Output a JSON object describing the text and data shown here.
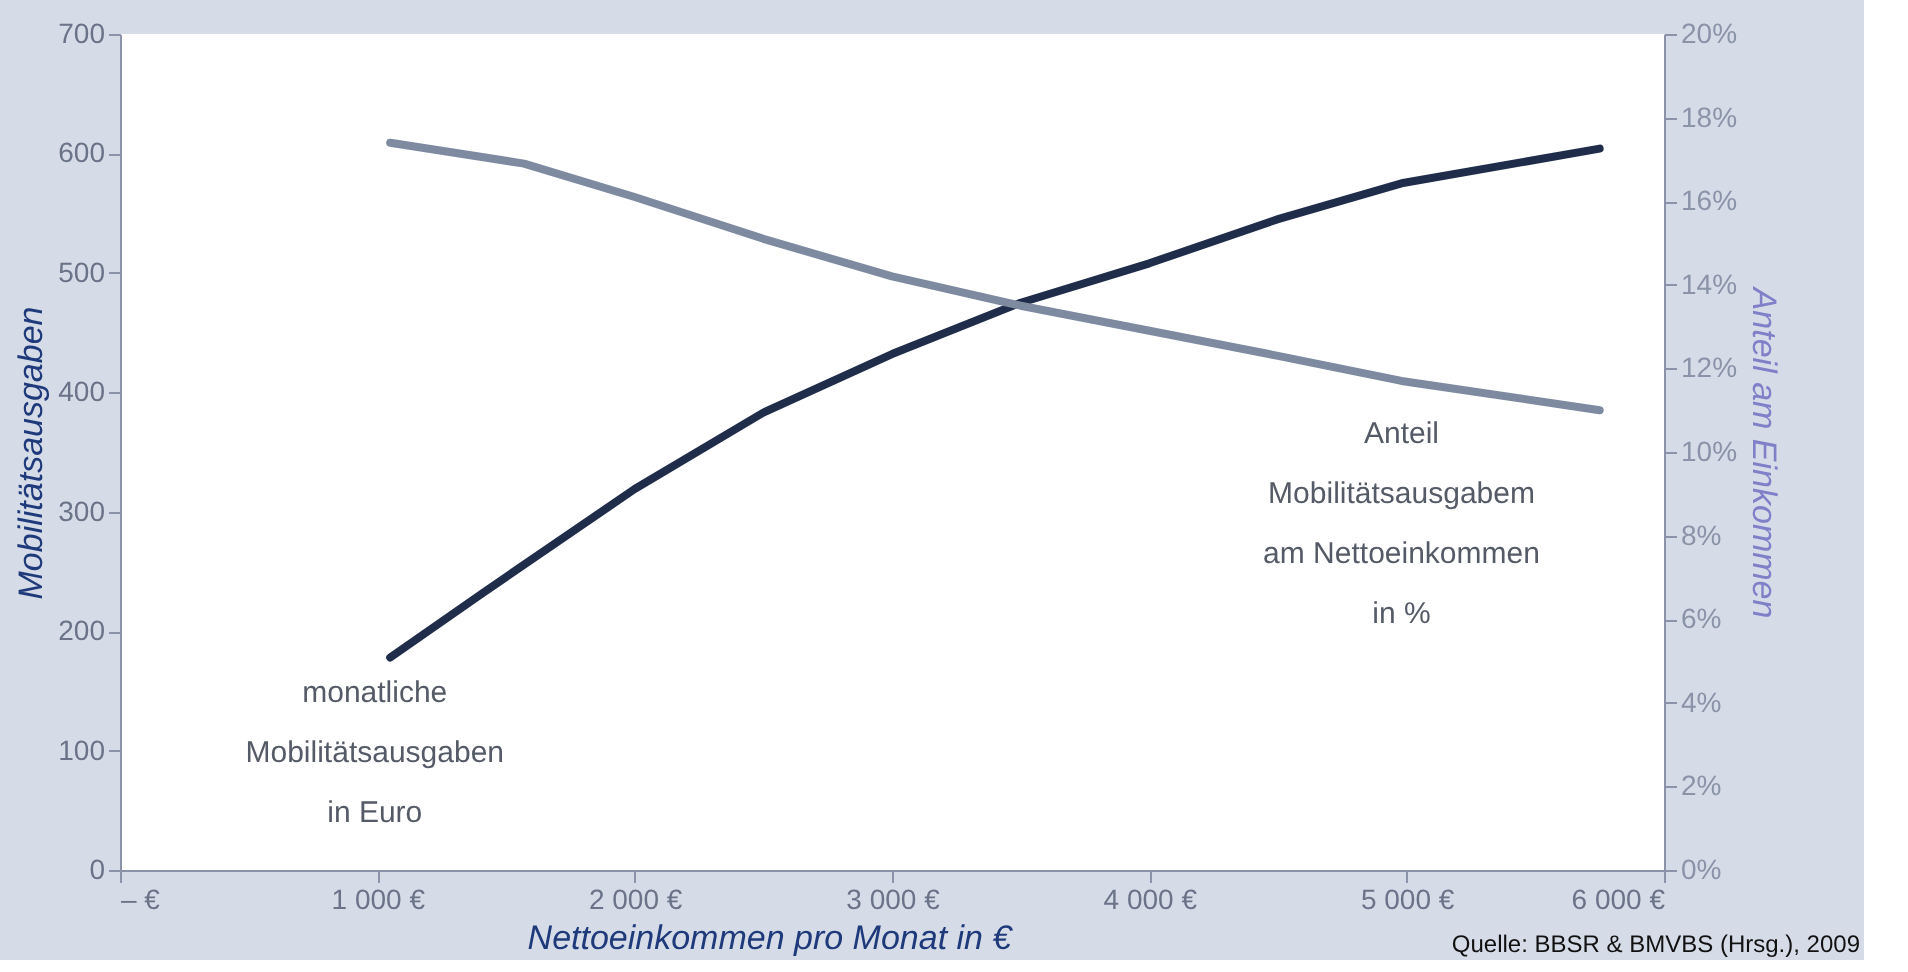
{
  "chart_data": {
    "type": "line",
    "xlabel": "Nettoeinkommen pro Monat in €",
    "ylabel": "Mobilitätsausgaben",
    "y2label": "Anteil am Einkommen",
    "xlim": [
      0,
      6000
    ],
    "xticks": [
      {
        "value": 0,
        "label": "– €"
      },
      {
        "value": 1000,
        "label": "1 000 €"
      },
      {
        "value": 2000,
        "label": "2 000 €"
      },
      {
        "value": 3000,
        "label": "3 000 €"
      },
      {
        "value": 4000,
        "label": "4 000 €"
      },
      {
        "value": 5000,
        "label": "5 000 €"
      },
      {
        "value": 6000,
        "label": "6 000 €"
      }
    ],
    "ylim": [
      0,
      700
    ],
    "yticks": [
      0,
      100,
      200,
      300,
      400,
      500,
      600,
      700
    ],
    "y2lim": [
      0,
      20
    ],
    "y2ticks": [
      {
        "value": 0,
        "label": "0%"
      },
      {
        "value": 2,
        "label": "2%"
      },
      {
        "value": 4,
        "label": "4%"
      },
      {
        "value": 6,
        "label": "6%"
      },
      {
        "value": 8,
        "label": "8%"
      },
      {
        "value": 10,
        "label": "10%"
      },
      {
        "value": 12,
        "label": "12%"
      },
      {
        "value": 14,
        "label": "14%"
      },
      {
        "value": 16,
        "label": "16%"
      },
      {
        "value": 18,
        "label": "18%"
      },
      {
        "value": 20,
        "label": "20%"
      }
    ],
    "series": [
      {
        "name": "monatliche\nMobilitätsausgaben\nin Euro",
        "color": "#1f2d4a",
        "x": [
          1050,
          1410,
          2000,
          2500,
          3000,
          3500,
          4000,
          4500,
          4980,
          5750
        ],
        "values": [
          178,
          232,
          319,
          383,
          432,
          475,
          508,
          545,
          575,
          604
        ]
      },
      {
        "name": "Anteil\nMobilitätsausgabem\nam Nettoeinkommen\nin %",
        "color": "#7d8aa0",
        "axis": "y2",
        "x": [
          1050,
          1570,
          2000,
          2500,
          3000,
          3500,
          4000,
          4500,
          4980,
          5750
        ],
        "values": [
          17.4,
          16.9,
          16.1,
          15.1,
          14.2,
          13.5,
          12.9,
          12.3,
          11.7,
          11.0
        ]
      }
    ],
    "annotations": [
      "Quelle: BBSR & BMVBS (Hrsg.), 2009"
    ],
    "grid": false,
    "marker": "none",
    "line_style": "solid"
  }
}
